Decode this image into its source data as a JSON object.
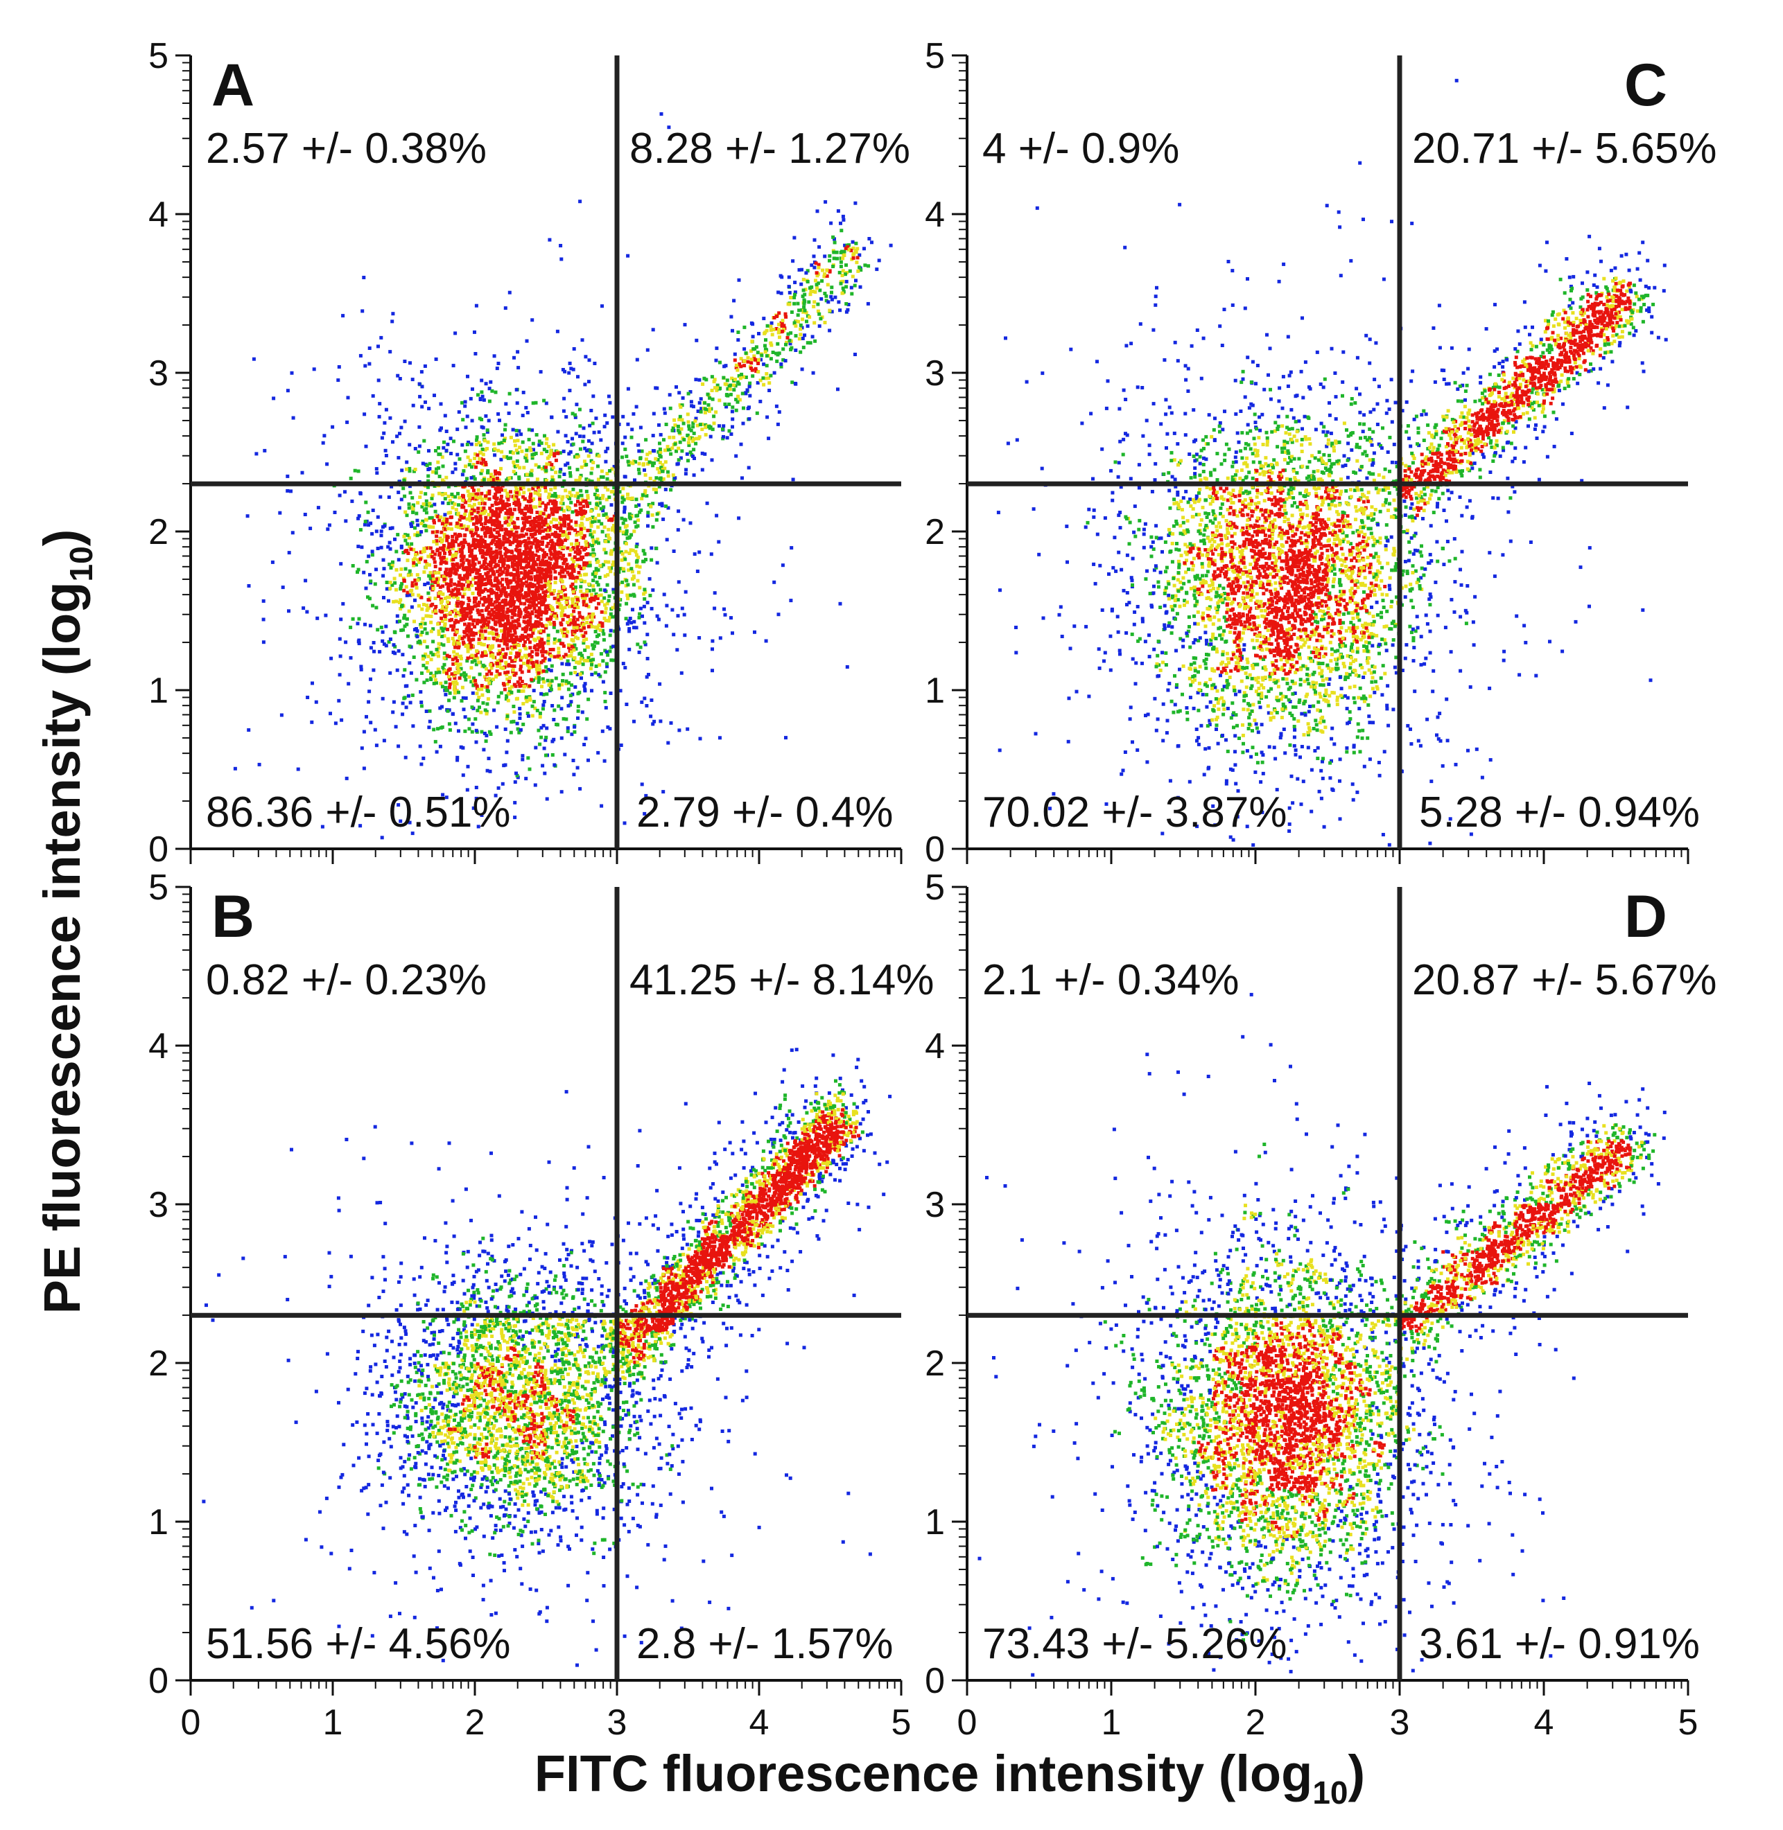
{
  "chart_data": {
    "type": "scatter",
    "subtype": "flow-cytometry density dot plot, 2x2 panels",
    "xlabel": "FITC fluorescence intensity (log",
    "xlabel_sub": "10",
    "xlabel_close": ")",
    "ylabel": "PE fluorescence intensity (log",
    "ylabel_sub": "10",
    "ylabel_close": ")",
    "xlim": [
      0,
      5
    ],
    "ylim": [
      0,
      5
    ],
    "xticks": [
      "0",
      "1",
      "2",
      "3",
      "4",
      "5"
    ],
    "yticks": [
      "0",
      "1",
      "2",
      "3",
      "4",
      "5"
    ],
    "gate_x": 3.0,
    "gate_y": 2.3,
    "density_colors": [
      "#1428e0",
      "#1fb52a",
      "#e8e020",
      "#e8140e"
    ],
    "panels": [
      {
        "letter": "A",
        "letter_position": "top-left",
        "quadrants": {
          "upper_left": "2.57 +/- 0.38%",
          "upper_right": "8.28 +/- 1.27%",
          "lower_left": "86.36 +/- 0.51%",
          "lower_right": "2.79 +/- 0.4%"
        },
        "clusters": [
          {
            "center": [
              2.25,
              1.72
            ],
            "spread": [
              0.42,
              0.45
            ],
            "weight": 0.86
          },
          {
            "diagonal_from": [
              2.9,
              2.0
            ],
            "diagonal_to": [
              4.7,
              3.8
            ],
            "weight": 0.14
          }
        ]
      },
      {
        "letter": "B",
        "letter_position": "top-left",
        "quadrants": {
          "upper_left": "0.82 +/- 0.23%",
          "upper_right": "41.25 +/- 8.14%",
          "lower_left": "51.56 +/- 4.56%",
          "lower_right": "2.8 +/- 1.57%"
        },
        "clusters": [
          {
            "center": [
              2.3,
              1.75
            ],
            "spread": [
              0.45,
              0.4
            ],
            "weight": 0.55
          },
          {
            "diagonal_from": [
              3.0,
              2.05
            ],
            "diagonal_to": [
              4.6,
              3.55
            ],
            "weight": 0.45
          }
        ]
      },
      {
        "letter": "C",
        "letter_position": "top-right",
        "quadrants": {
          "upper_left": "4 +/- 0.9%",
          "upper_right": "20.71 +/- 5.65%",
          "lower_left": "70.02 +/- 3.87%",
          "lower_right": "5.28 +/- 0.94%"
        },
        "clusters": [
          {
            "center": [
              2.2,
              1.7
            ],
            "spread": [
              0.45,
              0.5
            ],
            "weight": 0.72
          },
          {
            "diagonal_from": [
              3.0,
              2.2
            ],
            "diagonal_to": [
              4.6,
              3.5
            ],
            "weight": 0.28
          }
        ]
      },
      {
        "letter": "D",
        "letter_position": "top-right",
        "quadrants": {
          "upper_left": "2.1 +/- 0.34%",
          "upper_right": "20.87 +/- 5.67%",
          "lower_left": "73.43 +/- 5.26%",
          "lower_right": "3.61 +/- 0.91%"
        },
        "clusters": [
          {
            "center": [
              2.2,
              1.65
            ],
            "spread": [
              0.42,
              0.5
            ],
            "weight": 0.74
          },
          {
            "diagonal_from": [
              3.0,
              2.2
            ],
            "diagonal_to": [
              4.6,
              3.4
            ],
            "weight": 0.26
          }
        ]
      }
    ]
  }
}
